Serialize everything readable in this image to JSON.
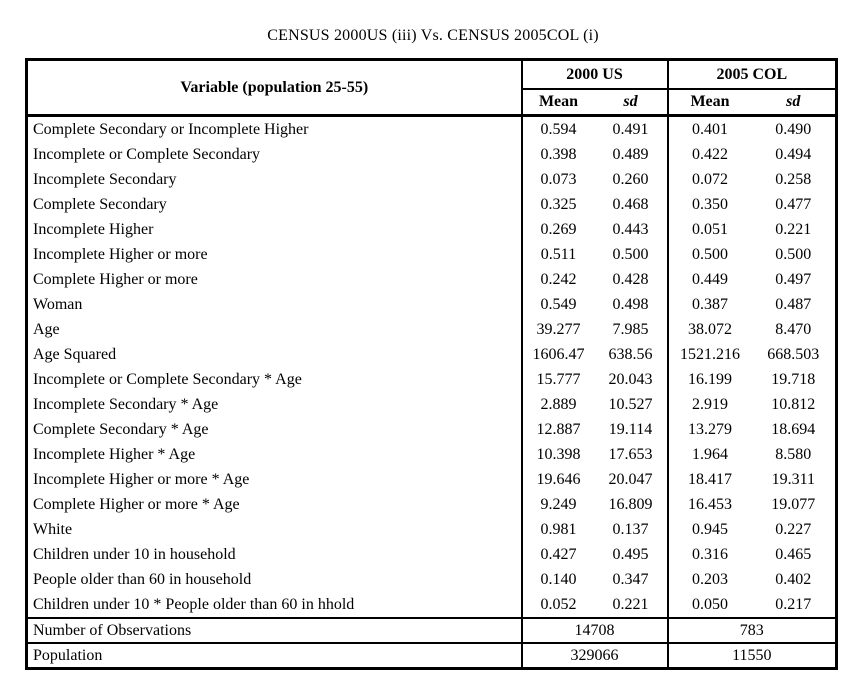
{
  "page": {
    "title": "CENSUS 2000US (iii) Vs. CENSUS 2005COL (i)"
  },
  "colors": {
    "text": "#000000",
    "background": "#ffffff",
    "table_border": "#000000"
  },
  "table": {
    "variable_header": "Variable (population 25-55)",
    "group_headers": [
      "2000 US",
      "2005 COL"
    ],
    "col_headers": {
      "mean": "Mean",
      "sd": "sd"
    },
    "rows": [
      {
        "variable": "Complete Secondary or Incomplete Higher",
        "us_mean": "0.594",
        "us_sd": "0.491",
        "col_mean": "0.401",
        "col_sd": "0.490"
      },
      {
        "variable": "Incomplete or Complete Secondary",
        "us_mean": "0.398",
        "us_sd": "0.489",
        "col_mean": "0.422",
        "col_sd": "0.494"
      },
      {
        "variable": "Incomplete Secondary",
        "us_mean": "0.073",
        "us_sd": "0.260",
        "col_mean": "0.072",
        "col_sd": "0.258"
      },
      {
        "variable": "Complete Secondary",
        "us_mean": "0.325",
        "us_sd": "0.468",
        "col_mean": "0.350",
        "col_sd": "0.477"
      },
      {
        "variable": "Incomplete Higher",
        "us_mean": "0.269",
        "us_sd": "0.443",
        "col_mean": "0.051",
        "col_sd": "0.221"
      },
      {
        "variable": "Incomplete Higher or more",
        "us_mean": "0.511",
        "us_sd": "0.500",
        "col_mean": "0.500",
        "col_sd": "0.500"
      },
      {
        "variable": "Complete Higher or more",
        "us_mean": "0.242",
        "us_sd": "0.428",
        "col_mean": "0.449",
        "col_sd": "0.497"
      },
      {
        "variable": "Woman",
        "us_mean": "0.549",
        "us_sd": "0.498",
        "col_mean": "0.387",
        "col_sd": "0.487"
      },
      {
        "variable": "Age",
        "us_mean": "39.277",
        "us_sd": "7.985",
        "col_mean": "38.072",
        "col_sd": "8.470"
      },
      {
        "variable": "Age Squared",
        "us_mean": "1606.47",
        "us_sd": "638.56",
        "col_mean": "1521.216",
        "col_sd": "668.503"
      },
      {
        "variable": "Incomplete or Complete Secondary * Age",
        "us_mean": "15.777",
        "us_sd": "20.043",
        "col_mean": "16.199",
        "col_sd": "19.718"
      },
      {
        "variable": "Incomplete Secondary * Age",
        "us_mean": "2.889",
        "us_sd": "10.527",
        "col_mean": "2.919",
        "col_sd": "10.812"
      },
      {
        "variable": "Complete Secondary * Age",
        "us_mean": "12.887",
        "us_sd": "19.114",
        "col_mean": "13.279",
        "col_sd": "18.694"
      },
      {
        "variable": "Incomplete Higher * Age",
        "us_mean": "10.398",
        "us_sd": "17.653",
        "col_mean": "1.964",
        "col_sd": "8.580"
      },
      {
        "variable": "Incomplete Higher or more * Age",
        "us_mean": "19.646",
        "us_sd": "20.047",
        "col_mean": "18.417",
        "col_sd": "19.311"
      },
      {
        "variable": "Complete Higher or more * Age",
        "us_mean": "9.249",
        "us_sd": "16.809",
        "col_mean": "16.453",
        "col_sd": "19.077"
      },
      {
        "variable": "White",
        "us_mean": "0.981",
        "us_sd": "0.137",
        "col_mean": "0.945",
        "col_sd": "0.227"
      },
      {
        "variable": "Children under 10 in household",
        "us_mean": "0.427",
        "us_sd": "0.495",
        "col_mean": "0.316",
        "col_sd": "0.465"
      },
      {
        "variable": "People older than 60 in household",
        "us_mean": "0.140",
        "us_sd": "0.347",
        "col_mean": "0.203",
        "col_sd": "0.402"
      },
      {
        "variable": "Children under 10 * People older than 60 in hhold",
        "us_mean": "0.052",
        "us_sd": "0.221",
        "col_mean": "0.050",
        "col_sd": "0.217"
      }
    ],
    "summary_rows": [
      {
        "label": "Number of Observations",
        "us": "14708",
        "col": "783"
      },
      {
        "label": "Population",
        "us": "329066",
        "col": "11550"
      }
    ]
  }
}
